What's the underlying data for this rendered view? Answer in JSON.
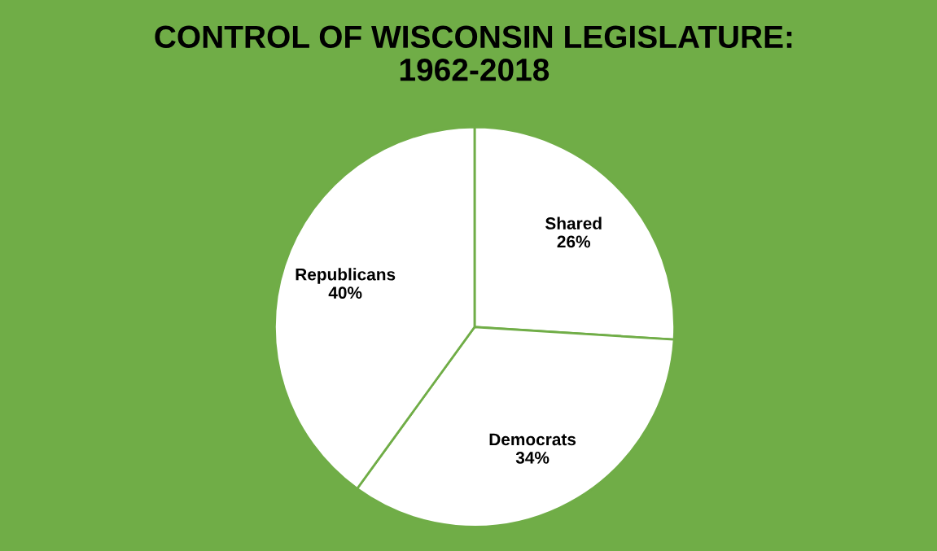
{
  "chart_data": {
    "type": "pie",
    "title": "CONTROL OF WISCONSIN LEGISLATURE:\n1962-2018",
    "categories": [
      "Shared",
      "Democrats",
      "Republicans"
    ],
    "values": [
      26,
      34,
      40
    ],
    "value_labels": [
      "26%",
      "34%",
      "40%"
    ],
    "colors": [
      "#ffffff",
      "#ffffff",
      "#ffffff"
    ],
    "legend": false
  }
}
